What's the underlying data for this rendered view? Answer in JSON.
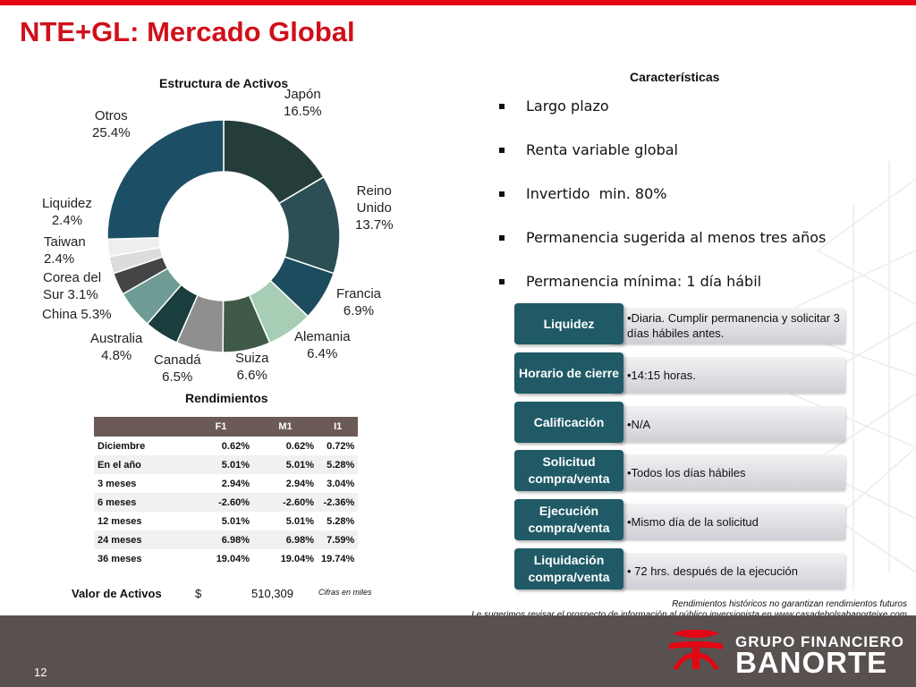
{
  "title": "NTE+GL: Mercado Global",
  "chart_data": {
    "type": "pie",
    "title": "Estructura de Activos",
    "categories": [
      "Japón",
      "Reino Unido",
      "Francia",
      "Alemania",
      "Suiza",
      "Canadá",
      "Australia",
      "China",
      "Corea del Sur",
      "Taiwan",
      "Liquidez",
      "Otros"
    ],
    "values": [
      16.5,
      13.7,
      6.9,
      6.4,
      6.6,
      6.5,
      4.8,
      5.3,
      3.1,
      2.4,
      2.4,
      25.4
    ],
    "value_labels": [
      "16.5%",
      "13.7%",
      "6.9%",
      "6.4%",
      "6.6%",
      "6.5%",
      "4.8%",
      "5.3%",
      "3.1%",
      "2.4%",
      "2.4%",
      "25.4%"
    ],
    "colors": [
      "#253d3a",
      "#2b4f55",
      "#1d4c5e",
      "#a7cdb4",
      "#3f5a47",
      "#8f8f8f",
      "#1a3d3d",
      "#6e9c94",
      "#444444",
      "#dcdcdc",
      "#eeeeee",
      "#1c4f66"
    ]
  },
  "slice_labels": {
    "japon": {
      "name": "Japón",
      "pct": "16.5%"
    },
    "reino": {
      "name_1": "Reino",
      "name_2": "Unido",
      "pct": "13.7%"
    },
    "francia": {
      "name": "Francia",
      "pct": "6.9%"
    },
    "alemania": {
      "name": "Alemania",
      "pct": "6.4%"
    },
    "suiza": {
      "name": "Suiza",
      "pct": "6.6%"
    },
    "canada": {
      "name": "Canadá",
      "pct": "6.5%"
    },
    "australia": {
      "name": "Australia",
      "pct": "4.8%"
    },
    "china": {
      "text": "China 5.3%"
    },
    "corea": {
      "line_1": "Corea del",
      "line_2": "Sur 3.1%"
    },
    "taiwan": {
      "name": "Taiwan",
      "pct": "2.4%"
    },
    "liquidez": {
      "name": "Liquidez",
      "pct": "2.4%"
    },
    "otros": {
      "name": "Otros",
      "pct": "25.4%"
    }
  },
  "performance": {
    "title": "Rendimientos",
    "headers": [
      "",
      "F1",
      "M1",
      "I1"
    ],
    "rows": [
      [
        "Diciembre",
        "0.62%",
        "0.62%",
        "0.72%"
      ],
      [
        "En el año",
        "5.01%",
        "5.01%",
        "5.28%"
      ],
      [
        "3 meses",
        "2.94%",
        "2.94%",
        "3.04%"
      ],
      [
        "6 meses",
        "-2.60%",
        "-2.60%",
        "-2.36%"
      ],
      [
        "12 meses",
        "5.01%",
        "5.01%",
        "5.28%"
      ],
      [
        "24 meses",
        "6.98%",
        "6.98%",
        "7.59%"
      ],
      [
        "36 meses",
        "19.04%",
        "19.04%",
        "19.74%"
      ]
    ]
  },
  "assets": {
    "label": "Valor de Activos",
    "currency": "$",
    "value": "510,309",
    "note": "Cifras en miles"
  },
  "characteristics": {
    "title": "Características",
    "bullets": [
      "Largo plazo",
      "Renta variable global",
      "Invertido  min. 80%",
      "Permanencia sugerida al menos tres años",
      "Permanencia mínima: 1 día hábil"
    ]
  },
  "details": [
    {
      "label": "Liquidez",
      "value": "•Diaria. Cumplir permanencia y solicitar 3 días hábiles antes."
    },
    {
      "label": "Horario de cierre",
      "value": "•14:15 horas."
    },
    {
      "label": "Calificación",
      "value": "•N/A"
    },
    {
      "label": "Solicitud compra/venta",
      "value": "•Todos los días hábiles"
    },
    {
      "label": "Ejecución compra/venta",
      "value": "•Mismo día de la solicitud"
    },
    {
      "label": "Liquidación compra/venta",
      "value": "• 72 hrs. después de la ejecución"
    }
  ],
  "disclaimers": {
    "line_1": "Rendimientos históricos no garantizan rendimientos futuros",
    "line_2": "Le sugerimos revisar el prospecto de información al público inversionista en www.casadebolsabanorteixe.com"
  },
  "footer": {
    "page_number": "12",
    "logo_top": "GRUPO FINANCIERO",
    "logo_main": "BANORTE"
  },
  "colors": {
    "brand_red": "#e30613",
    "title_red": "#d0101a",
    "label_teal": "#1f5a66",
    "footer_gray": "#595150",
    "table_header": "#6b5a56"
  }
}
